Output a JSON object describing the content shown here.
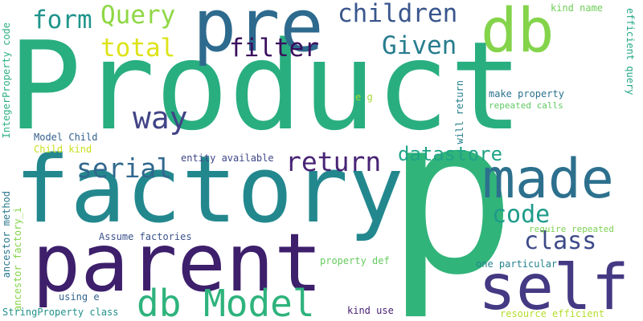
{
  "words": [
    {
      "text": "Product",
      "color": "#29ae80"
    },
    {
      "text": "p",
      "color": "#31b47a"
    },
    {
      "text": "factory",
      "color": "#23888e"
    },
    {
      "text": "parent",
      "color": "#3d1f6b"
    },
    {
      "text": "pre",
      "color": "#2d6a8e"
    },
    {
      "text": "db",
      "color": "#84d44b"
    },
    {
      "text": "made",
      "color": "#2d708e"
    },
    {
      "text": "self",
      "color": "#443983"
    },
    {
      "text": "db Model",
      "color": "#2eb37c"
    },
    {
      "text": "form",
      "color": "#1f948c"
    },
    {
      "text": "Query",
      "color": "#8fd744"
    },
    {
      "text": "children",
      "color": "#39568c"
    },
    {
      "text": "total",
      "color": "#dde318"
    },
    {
      "text": "filter",
      "color": "#3a0f5e"
    },
    {
      "text": "Given",
      "color": "#287d8e"
    },
    {
      "text": "way",
      "color": "#414487"
    },
    {
      "text": "serial",
      "color": "#31688e"
    },
    {
      "text": "return",
      "color": "#482475"
    },
    {
      "text": "datastore",
      "color": "#20a486"
    },
    {
      "text": "code",
      "color": "#1e9b8a"
    },
    {
      "text": "class",
      "color": "#3e4a89"
    },
    {
      "text": "kind name",
      "color": "#6ece58"
    },
    {
      "text": "efficient query",
      "color": "#22a785"
    },
    {
      "text": "IntegerProperty code",
      "color": "#2ab07f"
    },
    {
      "text": "e g",
      "color": "#a2da37"
    },
    {
      "text": "will return",
      "color": "#277f8e"
    },
    {
      "text": "make property",
      "color": "#2c728e"
    },
    {
      "text": "repeated calls",
      "color": "#5ec962"
    },
    {
      "text": "Model Child",
      "color": "#34608d"
    },
    {
      "text": "Child kind",
      "color": "#c7e020"
    },
    {
      "text": "entity available",
      "color": "#3f4788"
    },
    {
      "text": "ancestor method",
      "color": "#2a788e"
    },
    {
      "text": "ancestor factory_i",
      "color": "#84d44b"
    },
    {
      "text": "Assume factories",
      "color": "#3b528b"
    },
    {
      "text": "require repeated",
      "color": "#7ad151"
    },
    {
      "text": "property def",
      "color": "#65cb5e"
    },
    {
      "text": "one particular",
      "color": "#26828e"
    },
    {
      "text": "using e",
      "color": "#33638d"
    },
    {
      "text": "StringProperty class",
      "color": "#21918c"
    },
    {
      "text": "kind use",
      "color": "#482173"
    },
    {
      "text": "resource efficient",
      "color": "#b5de2b"
    }
  ]
}
